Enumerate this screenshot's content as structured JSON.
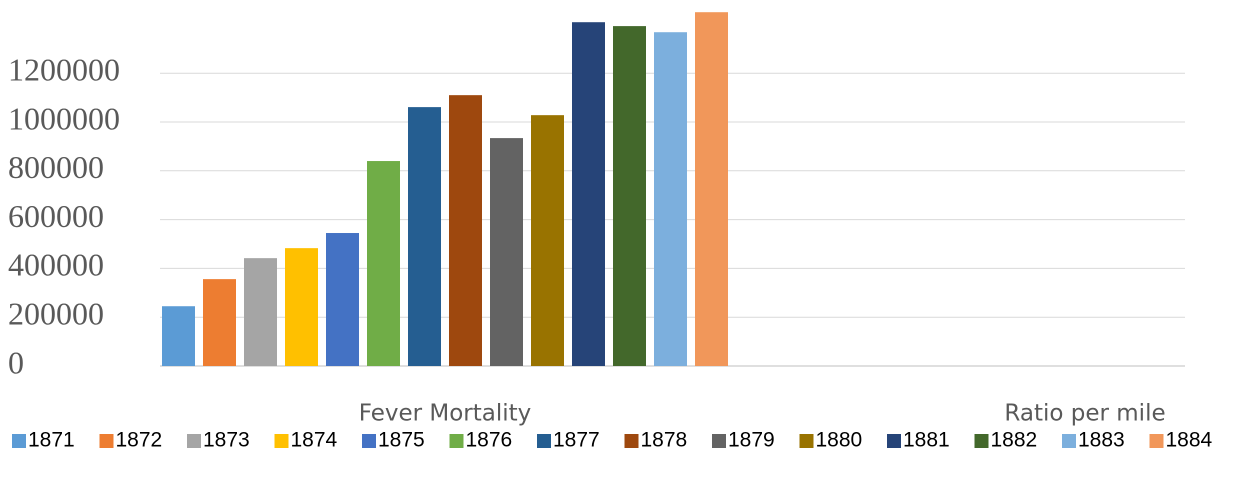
{
  "chart_data": {
    "type": "bar",
    "categories": [
      "Fever Mortality",
      "Ratio per mile"
    ],
    "series": [
      {
        "name": "1871",
        "color": "#5b9bd5",
        "values": [
          245000,
          0
        ]
      },
      {
        "name": "1872",
        "color": "#ed7d31",
        "values": [
          356000,
          0
        ]
      },
      {
        "name": "1873",
        "color": "#a5a5a5",
        "values": [
          442000,
          0
        ]
      },
      {
        "name": "1874",
        "color": "#ffc000",
        "values": [
          483000,
          0
        ]
      },
      {
        "name": "1875",
        "color": "#4472c4",
        "values": [
          545000,
          0
        ]
      },
      {
        "name": "1876",
        "color": "#70ad47",
        "values": [
          840000,
          0
        ]
      },
      {
        "name": "1877",
        "color": "#255e91",
        "values": [
          1061000,
          0
        ]
      },
      {
        "name": "1878",
        "color": "#9e480e",
        "values": [
          1110000,
          0
        ]
      },
      {
        "name": "1879",
        "color": "#636363",
        "values": [
          934000,
          0
        ]
      },
      {
        "name": "1880",
        "color": "#997300",
        "values": [
          1028000,
          0
        ]
      },
      {
        "name": "1881",
        "color": "#264478",
        "values": [
          1409000,
          0
        ]
      },
      {
        "name": "1882",
        "color": "#43682b",
        "values": [
          1393000,
          0
        ]
      },
      {
        "name": "1883",
        "color": "#7cafdd",
        "values": [
          1368000,
          0
        ]
      },
      {
        "name": "1884",
        "color": "#f1975a",
        "values": [
          1450000,
          0
        ]
      }
    ],
    "ylim": [
      0,
      1500000
    ],
    "yticks": [
      0,
      200000,
      400000,
      600000,
      800000,
      1000000,
      1200000
    ],
    "grid": true,
    "legend": "bottom"
  }
}
